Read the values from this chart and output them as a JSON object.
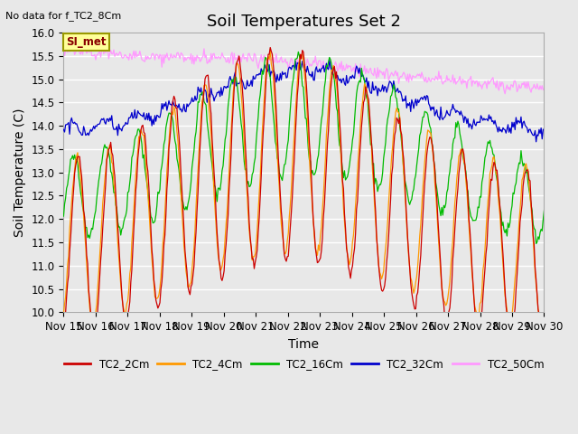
{
  "title": "Soil Temperatures Set 2",
  "note": "No data for f_TC2_8Cm",
  "xlabel": "Time",
  "ylabel": "Soil Temperature (C)",
  "ylim": [
    10.0,
    16.0
  ],
  "yticks": [
    10.0,
    10.5,
    11.0,
    11.5,
    12.0,
    12.5,
    13.0,
    13.5,
    14.0,
    14.5,
    15.0,
    15.5,
    16.0
  ],
  "xlim": [
    0,
    15
  ],
  "xtick_labels": [
    "Nov 15",
    "Nov 16",
    "Nov 17",
    "Nov 18",
    "Nov 19",
    "Nov 20",
    "Nov 21",
    "Nov 22",
    "Nov 23",
    "Nov 24",
    "Nov 25",
    "Nov 26",
    "Nov 27",
    "Nov 28",
    "Nov 29",
    "Nov 30"
  ],
  "legend_entries": [
    "TC2_2Cm",
    "TC2_4Cm",
    "TC2_16Cm",
    "TC2_32Cm",
    "TC2_50Cm"
  ],
  "line_colors": [
    "#cc0000",
    "#ff9900",
    "#00bb00",
    "#0000cc",
    "#ff99ff"
  ],
  "background_color": "#e8e8e8",
  "plot_bg_color": "#e8e8e8",
  "grid_color": "#ffffff",
  "annotation_box": {
    "text": "SI_met",
    "bg": "#ffff99",
    "border": "#999900"
  },
  "title_fontsize": 13,
  "label_fontsize": 10,
  "tick_fontsize": 8.5
}
